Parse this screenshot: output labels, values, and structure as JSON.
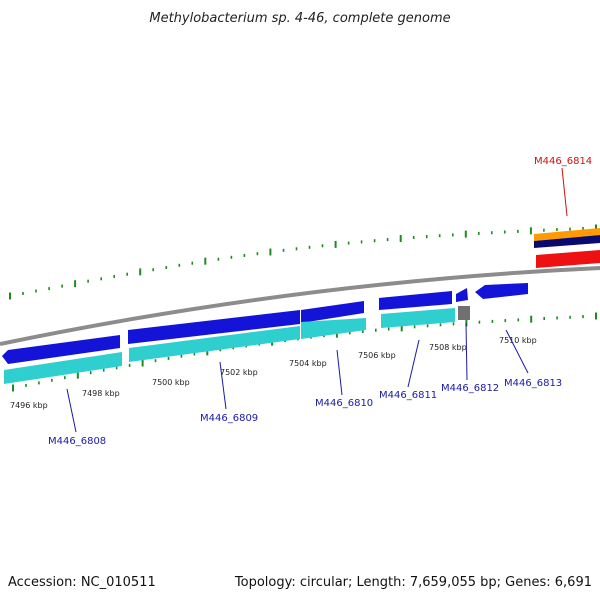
{
  "title": "Methylobacterium sp. 4-46, complete genome",
  "footer": {
    "accession": "Accession: NC_010511",
    "summary": "Topology: circular; Length: 7,659,055 bp; Genes: 6,691"
  },
  "colors": {
    "backbone": "#8c8c8c",
    "tick": "#1f8a1f",
    "forward_cds": "#1414d9",
    "reverse_cds": "#ee1111",
    "forward_feature": "#2fcfcf",
    "gap_feature": "#707070",
    "label_forward": "#1a1aa6",
    "label_reverse": "#cc1111",
    "orange_feature": "#ff9a00",
    "navy_feature": "#0a0a6e"
  },
  "scale": {
    "unit": "kbp",
    "labels": [
      "7496 kbp",
      "7498 kbp",
      "7500 kbp",
      "7502 kbp",
      "7504 kbp",
      "7506 kbp",
      "7508 kbp",
      "7510 kbp"
    ]
  },
  "genes": [
    {
      "label": "M446_6808",
      "strand": "forward"
    },
    {
      "label": "M446_6809",
      "strand": "forward"
    },
    {
      "label": "M446_6810",
      "strand": "forward"
    },
    {
      "label": "M446_6811",
      "strand": "forward"
    },
    {
      "label": "M446_6812",
      "strand": "forward"
    },
    {
      "label": "M446_6813",
      "strand": "forward"
    },
    {
      "label": "M446_6814",
      "strand": "reverse"
    }
  ]
}
